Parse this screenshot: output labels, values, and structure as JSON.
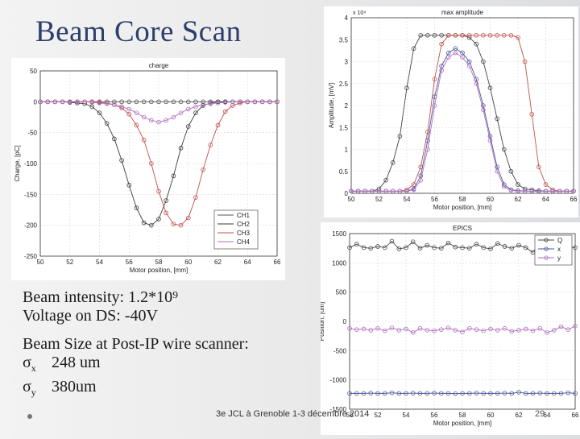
{
  "slide": {
    "title": "Beam Core Scan",
    "intensity_line": "Beam intensity: 1.2*10⁹",
    "voltage_line": "Voltage on DS:  -40V",
    "size_heading": "Beam Size at Post-IP wire scanner:",
    "sigma_x_symbol": "σ",
    "sigma_x_sub": "x",
    "sigma_x_value": "248 um",
    "sigma_y_symbol": "σ",
    "sigma_y_sub": "y",
    "sigma_y_value": "380um",
    "footer": "3e JCL à Grenoble 1-3 décembre 2014",
    "page_number": "29"
  },
  "chart_data": [
    {
      "id": "charge",
      "type": "line",
      "title": "charge",
      "xlabel": "Motor position, [mm]",
      "ylabel": "Charge, [pC]",
      "xlim": [
        50,
        66
      ],
      "ylim": [
        -250,
        50
      ],
      "xticks": [
        50,
        52,
        54,
        56,
        58,
        60,
        62,
        64,
        66
      ],
      "yticks": [
        50,
        0,
        -50,
        -100,
        -150,
        -200,
        -250
      ],
      "grid": true,
      "legend": "bottom-right",
      "x": [
        50,
        50.5,
        51,
        51.5,
        52,
        52.5,
        53,
        53.5,
        54,
        54.5,
        55,
        55.5,
        56,
        56.5,
        57,
        57.5,
        58,
        58.5,
        59,
        59.5,
        60,
        60.5,
        61,
        61.5,
        62,
        62.5,
        63,
        63.5,
        64,
        64.5,
        65,
        65.5,
        66
      ],
      "series": [
        {
          "name": "CH1",
          "color": "#555555",
          "values": [
            0,
            0,
            0,
            0,
            0,
            0,
            0,
            0,
            0,
            0,
            0,
            0,
            0,
            0,
            0,
            0,
            0,
            0,
            0,
            0,
            0,
            0,
            0,
            0,
            0,
            0,
            0,
            0,
            0,
            0,
            0,
            0,
            0
          ]
        },
        {
          "name": "CH2",
          "color": "#3a3a3a",
          "values": [
            0,
            0,
            0,
            0,
            -1,
            -2,
            -3,
            -8,
            -18,
            -35,
            -60,
            -95,
            -135,
            -172,
            -196,
            -200,
            -190,
            -160,
            -120,
            -75,
            -40,
            -18,
            -6,
            -2,
            0,
            0,
            0,
            0,
            0,
            0,
            0,
            0,
            0
          ]
        },
        {
          "name": "CH3",
          "color": "#c0504d",
          "values": [
            0,
            0,
            0,
            0,
            0,
            0,
            0,
            0,
            -1,
            -2,
            -5,
            -10,
            -20,
            -38,
            -62,
            -100,
            -145,
            -180,
            -198,
            -200,
            -188,
            -155,
            -110,
            -70,
            -38,
            -16,
            -6,
            -2,
            0,
            0,
            0,
            0,
            0
          ]
        },
        {
          "name": "CH4",
          "color": "#b070c0",
          "values": [
            0,
            0,
            0,
            0,
            0,
            0,
            0,
            -1,
            -2,
            -3,
            -5,
            -8,
            -12,
            -18,
            -25,
            -30,
            -33,
            -30,
            -25,
            -18,
            -12,
            -8,
            -5,
            -3,
            -2,
            -1,
            0,
            0,
            0,
            0,
            0,
            0,
            0
          ]
        }
      ]
    },
    {
      "id": "max_amplitude",
      "type": "line",
      "title": "max amplitude",
      "exponent_label": "x 10⁴",
      "xlabel": "Motor position, [mm]",
      "ylabel": "Amplitude, [mV]",
      "xlim": [
        50,
        66
      ],
      "ylim": [
        0,
        4
      ],
      "xticks": [
        50,
        52,
        54,
        56,
        58,
        60,
        62,
        64,
        66
      ],
      "yticks": [
        0,
        0.5,
        1,
        1.5,
        2,
        2.5,
        3,
        3.5,
        4
      ],
      "grid": true,
      "x": [
        50,
        50.5,
        51,
        51.5,
        52,
        52.5,
        53,
        53.5,
        54,
        54.5,
        55,
        55.5,
        56,
        56.5,
        57,
        57.5,
        58,
        58.5,
        59,
        59.5,
        60,
        60.5,
        61,
        61.5,
        62,
        62.5,
        63,
        63.5,
        64,
        64.5,
        65,
        65.5,
        66
      ],
      "series": [
        {
          "name": "dark",
          "color": "#444444",
          "values": [
            0.05,
            0.05,
            0.05,
            0.05,
            0.1,
            0.3,
            0.7,
            1.3,
            2.4,
            3.3,
            3.6,
            3.6,
            3.6,
            3.6,
            3.6,
            3.6,
            3.6,
            3.55,
            3.4,
            3.0,
            2.4,
            1.7,
            1.0,
            0.5,
            0.2,
            0.1,
            0.08,
            0.06,
            0.05,
            0.05,
            0.05,
            0.05,
            0.05
          ]
        },
        {
          "name": "red",
          "color": "#c0504d",
          "values": [
            0.05,
            0.05,
            0.05,
            0.05,
            0.05,
            0.05,
            0.05,
            0.05,
            0.08,
            0.2,
            0.6,
            1.4,
            2.6,
            3.4,
            3.6,
            3.6,
            3.6,
            3.6,
            3.6,
            3.6,
            3.6,
            3.6,
            3.6,
            3.6,
            3.55,
            3.0,
            1.8,
            0.6,
            0.2,
            0.08,
            0.05,
            0.05,
            0.05
          ]
        },
        {
          "name": "blue",
          "color": "#4a5a9a",
          "values": [
            0.05,
            0.05,
            0.05,
            0.05,
            0.05,
            0.05,
            0.05,
            0.05,
            0.05,
            0.1,
            0.4,
            1.2,
            2.2,
            2.9,
            3.2,
            3.3,
            3.2,
            3.0,
            2.6,
            2.0,
            1.3,
            0.6,
            0.2,
            0.08,
            0.06,
            0.05,
            0.05,
            0.05,
            0.05,
            0.05,
            0.05,
            0.05,
            0.05
          ]
        },
        {
          "name": "violet",
          "color": "#b070c0",
          "values": [
            0.05,
            0.05,
            0.05,
            0.05,
            0.05,
            0.05,
            0.05,
            0.05,
            0.05,
            0.08,
            0.3,
            1.0,
            2.0,
            2.8,
            3.1,
            3.2,
            3.1,
            2.9,
            2.5,
            1.9,
            1.2,
            0.5,
            0.15,
            0.07,
            0.05,
            0.05,
            0.05,
            0.05,
            0.05,
            0.05,
            0.05,
            0.05,
            0.05
          ]
        }
      ]
    },
    {
      "id": "epics",
      "type": "line",
      "title": "EPICS",
      "xlabel": "Motor position, [mm]",
      "ylabel": "Position, [um]",
      "xlim": [
        50,
        66
      ],
      "ylim": [
        -1500,
        1500
      ],
      "xticks": [
        50,
        52,
        54,
        56,
        58,
        60,
        62,
        64,
        66
      ],
      "yticks": [
        1500,
        1000,
        500,
        0,
        -500,
        -1000,
        -1500
      ],
      "grid": true,
      "legend": "top-right",
      "x": [
        50,
        50.5,
        51,
        51.5,
        52,
        52.5,
        53,
        53.5,
        54,
        54.5,
        55,
        55.5,
        56,
        56.5,
        57,
        57.5,
        58,
        58.5,
        59,
        59.5,
        60,
        60.5,
        61,
        61.5,
        62,
        62.5,
        63,
        63.5,
        64,
        64.5,
        65,
        65.5,
        66
      ],
      "series": [
        {
          "name": "Q",
          "color": "#444444",
          "values": [
            1260,
            1320,
            1260,
            1250,
            1280,
            1260,
            1370,
            1240,
            1260,
            1360,
            1250,
            1300,
            1260,
            1250,
            1340,
            1270,
            1260,
            1250,
            1320,
            1260,
            1240,
            1330,
            1280,
            1250,
            1300,
            1260,
            1180,
            1330,
            1250,
            1290,
            1260,
            1270,
            1260
          ]
        },
        {
          "name": "x",
          "color": "#4a5a9a",
          "values": [
            -1230,
            -1230,
            -1230,
            -1225,
            -1230,
            -1230,
            -1220,
            -1230,
            -1230,
            -1225,
            -1230,
            -1230,
            -1225,
            -1230,
            -1230,
            -1235,
            -1230,
            -1230,
            -1225,
            -1230,
            -1230,
            -1230,
            -1225,
            -1230,
            -1210,
            -1230,
            -1230,
            -1225,
            -1230,
            -1230,
            -1230,
            -1220,
            -1230
          ]
        },
        {
          "name": "y",
          "color": "#b070c0",
          "values": [
            -120,
            -140,
            -130,
            -150,
            -120,
            -160,
            -110,
            -150,
            -130,
            -190,
            -120,
            -150,
            -160,
            -140,
            -110,
            -150,
            -180,
            -120,
            -140,
            -160,
            -130,
            -150,
            -120,
            -170,
            -150,
            -130,
            -160,
            -120,
            -190,
            -150,
            -90,
            -140,
            -80
          ]
        }
      ]
    }
  ]
}
